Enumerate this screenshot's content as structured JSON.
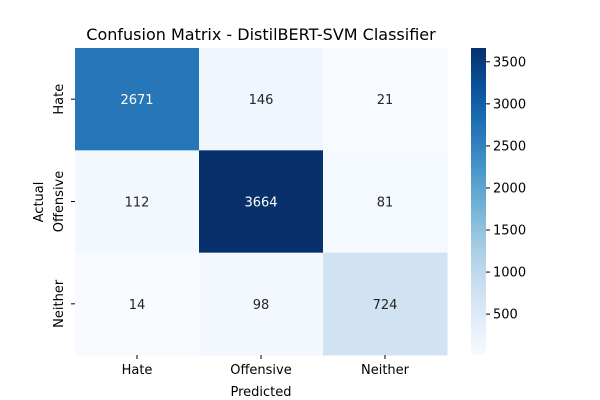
{
  "chart_data": {
    "type": "heatmap",
    "title": "Confusion Matrix - DistilBERT-SVM Classifier",
    "xlabel": "Predicted",
    "ylabel": "Actual",
    "x_categories": [
      "Hate",
      "Offensive",
      "Neither"
    ],
    "y_categories": [
      "Hate",
      "Offensive",
      "Neither"
    ],
    "values": [
      [
        2671,
        146,
        21
      ],
      [
        112,
        3664,
        81
      ],
      [
        14,
        98,
        724
      ]
    ],
    "colormap": "Blues",
    "colorbar": {
      "range": [
        14,
        3664
      ],
      "ticks": [
        500,
        1000,
        1500,
        2000,
        2500,
        3000,
        3500
      ],
      "tick_labels": [
        "500",
        "1000",
        "1500",
        "2000",
        "2500",
        "3000",
        "3500"
      ]
    },
    "grid": false,
    "legend": "colorbar-right"
  }
}
